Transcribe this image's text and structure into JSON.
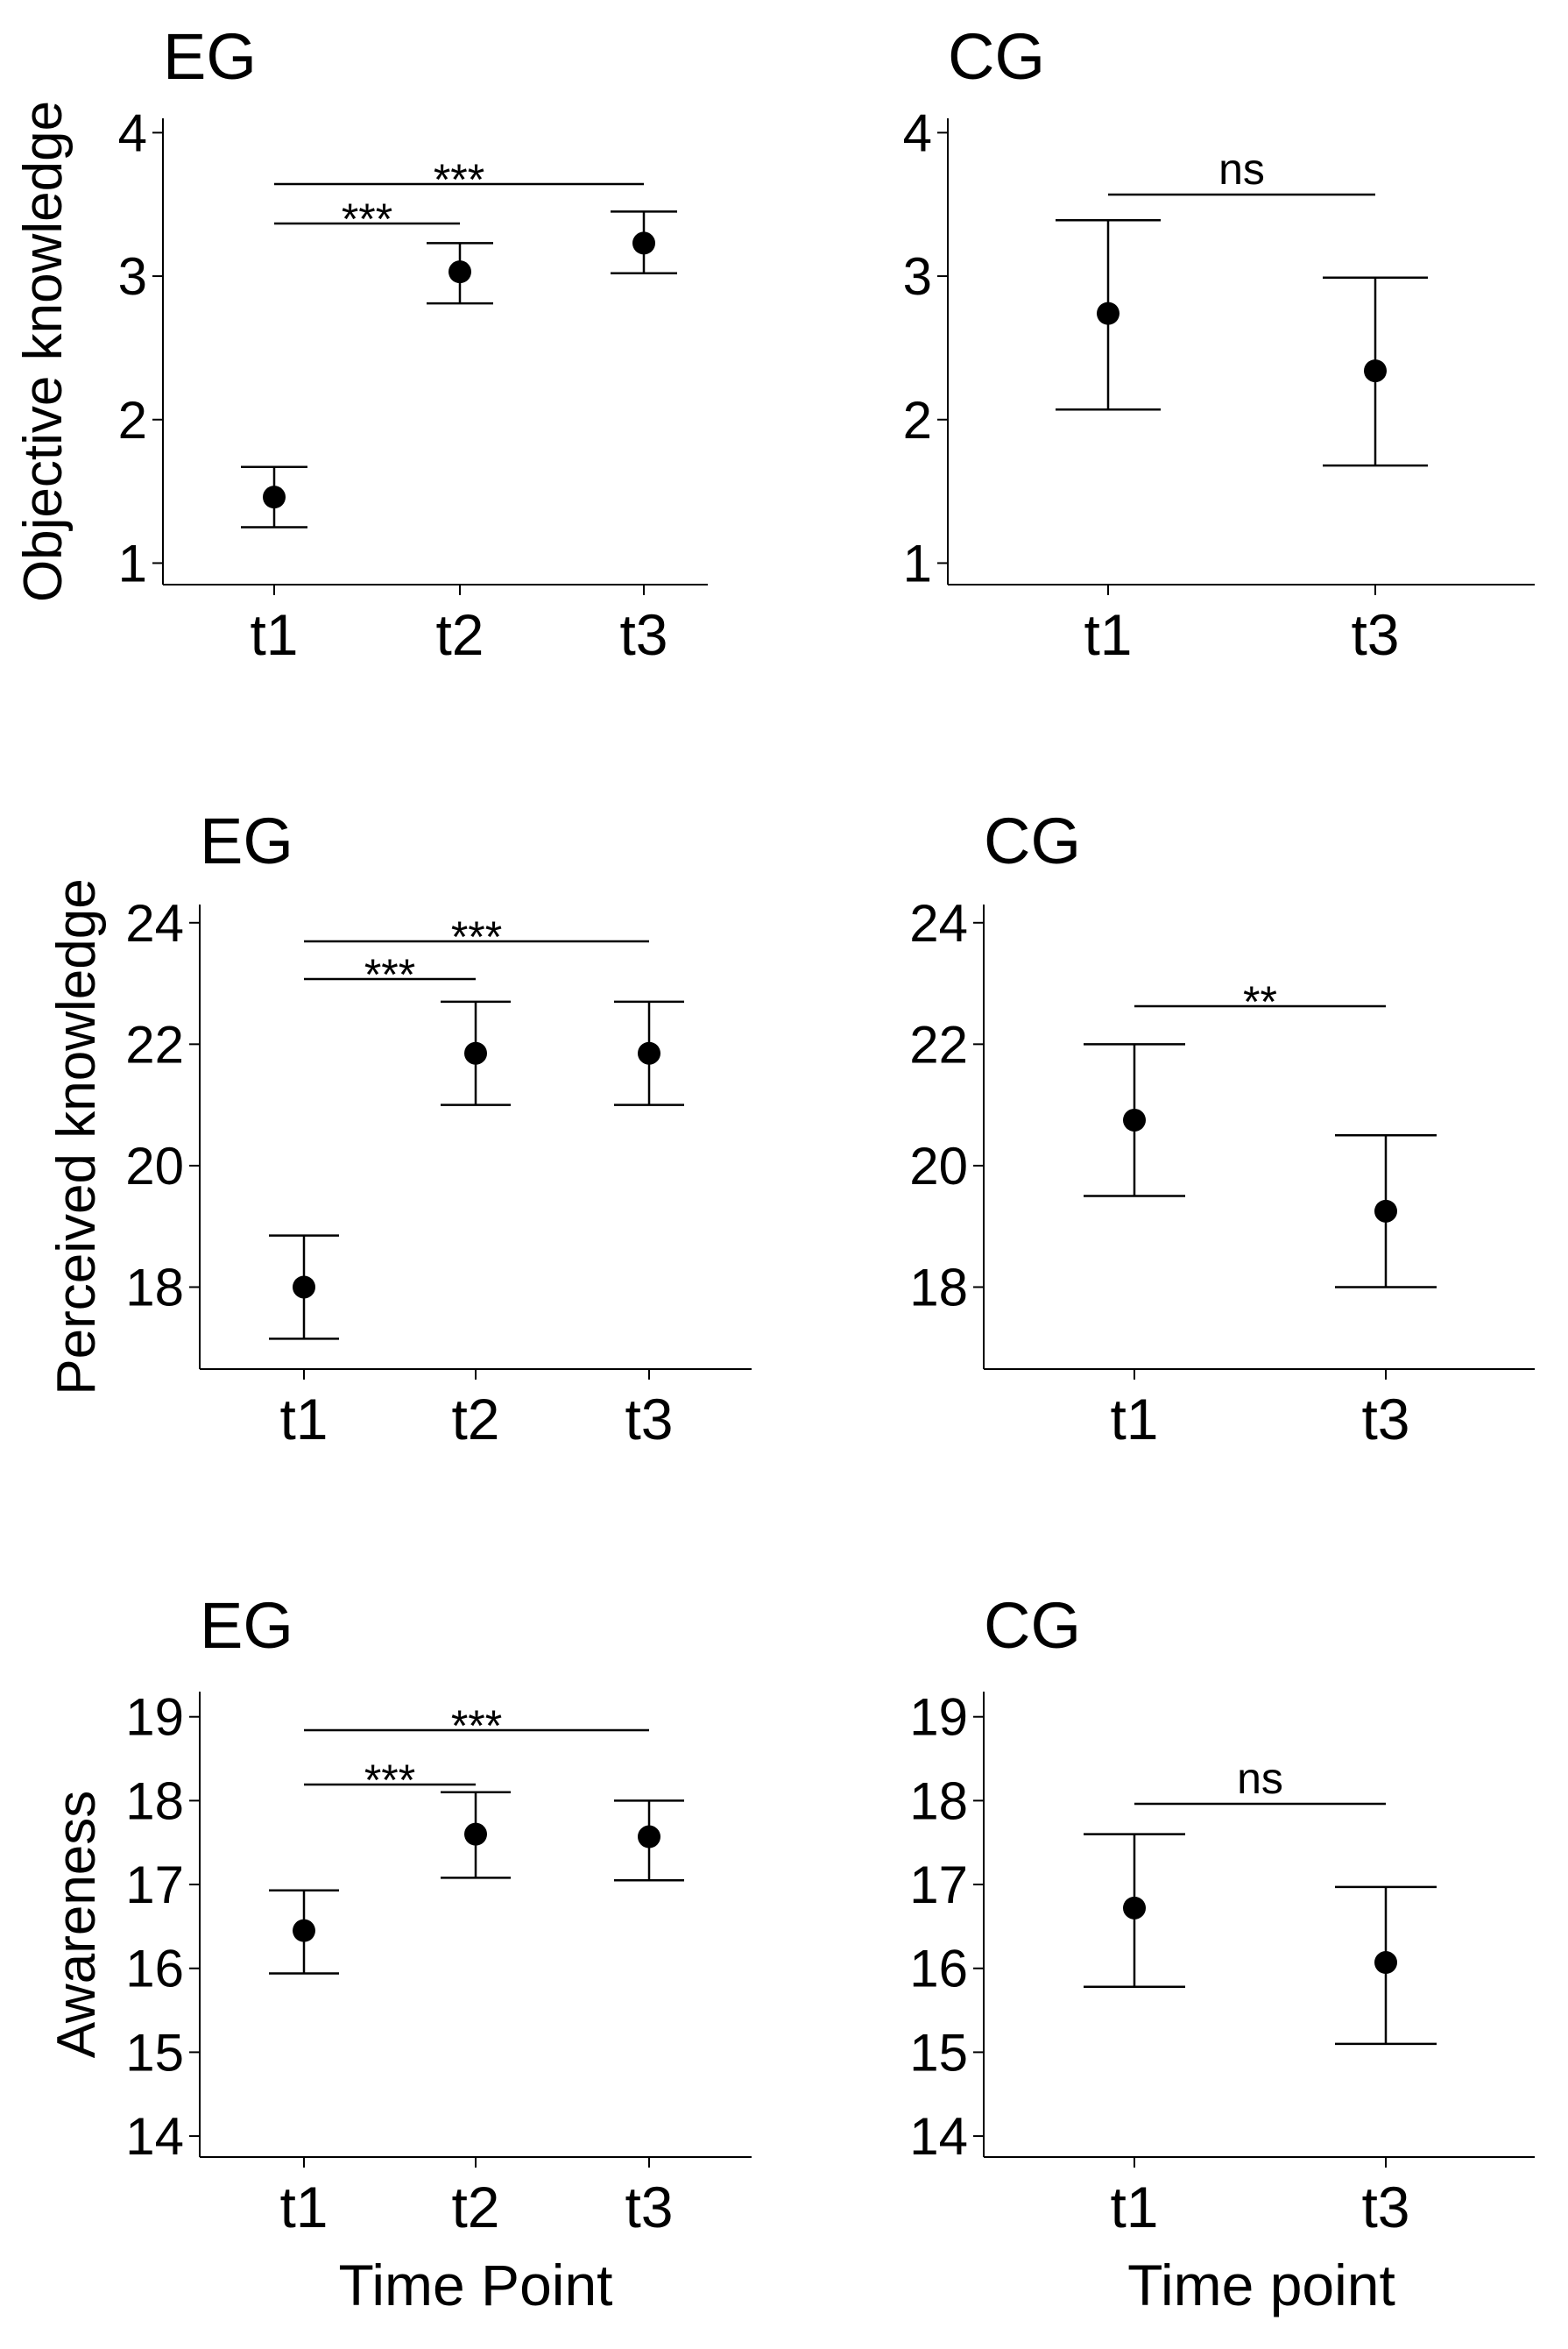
{
  "chart_data": [
    {
      "type": "scatter",
      "group": "EG",
      "title": "EG",
      "ylabel": "Objective knowledge",
      "xlabel": "",
      "categories": [
        "t1",
        "t2",
        "t3"
      ],
      "values": [
        1.46,
        3.03,
        3.23
      ],
      "ci_lower": [
        1.25,
        2.81,
        3.02
      ],
      "ci_upper": [
        1.67,
        3.23,
        3.45
      ],
      "ylim": [
        0.85,
        4.1
      ],
      "yticks": [
        "1",
        "2",
        "3",
        "4"
      ],
      "comparisons": [
        {
          "from": "t1",
          "to": "t2",
          "label": "***"
        },
        {
          "from": "t1",
          "to": "t3",
          "label": "***"
        }
      ]
    },
    {
      "type": "scatter",
      "group": "CG",
      "title": "CG",
      "ylabel": "",
      "xlabel": "",
      "categories": [
        "t1",
        "t3"
      ],
      "values": [
        2.74,
        2.34
      ],
      "ci_lower": [
        2.07,
        1.68
      ],
      "ci_upper": [
        3.39,
        2.99
      ],
      "ylim": [
        0.85,
        4.1
      ],
      "yticks": [
        "1",
        "2",
        "3",
        "4"
      ],
      "comparisons": [
        {
          "from": "t1",
          "to": "t3",
          "label": "ns"
        }
      ]
    },
    {
      "type": "scatter",
      "group": "EG",
      "title": "EG",
      "ylabel": "Perceived knowledge",
      "xlabel": "",
      "categories": [
        "t1",
        "t2",
        "t3"
      ],
      "values": [
        18.0,
        21.85,
        21.85
      ],
      "ci_lower": [
        17.15,
        21.0,
        21.0
      ],
      "ci_upper": [
        18.85,
        22.7,
        22.7
      ],
      "ylim": [
        16.65,
        24.3
      ],
      "yticks": [
        "18",
        "20",
        "22",
        "24"
      ],
      "comparisons": [
        {
          "from": "t1",
          "to": "t2",
          "label": "***"
        },
        {
          "from": "t1",
          "to": "t3",
          "label": "***"
        }
      ]
    },
    {
      "type": "scatter",
      "group": "CG",
      "title": "CG",
      "ylabel": "",
      "xlabel": "",
      "categories": [
        "t1",
        "t3"
      ],
      "values": [
        20.75,
        19.25
      ],
      "ci_lower": [
        19.5,
        18.0
      ],
      "ci_upper": [
        22.0,
        20.5
      ],
      "ylim": [
        16.65,
        24.3
      ],
      "yticks": [
        "18",
        "20",
        "22",
        "24"
      ],
      "comparisons": [
        {
          "from": "t1",
          "to": "t3",
          "label": "**"
        }
      ]
    },
    {
      "type": "scatter",
      "group": "EG",
      "title": "EG",
      "ylabel": "Awareness",
      "xlabel": "Time Point",
      "categories": [
        "t1",
        "t2",
        "t3"
      ],
      "values": [
        16.45,
        17.6,
        17.57
      ],
      "ci_lower": [
        15.94,
        17.08,
        17.05
      ],
      "ci_upper": [
        16.93,
        18.1,
        18.0
      ],
      "ylim": [
        13.75,
        19.3
      ],
      "yticks": [
        "14",
        "15",
        "16",
        "17",
        "18",
        "19"
      ],
      "comparisons": [
        {
          "from": "t1",
          "to": "t2",
          "label": "***"
        },
        {
          "from": "t1",
          "to": "t3",
          "label": "***"
        }
      ]
    },
    {
      "type": "scatter",
      "group": "CG",
      "title": "CG",
      "ylabel": "",
      "xlabel": "Time point",
      "categories": [
        "t1",
        "t3"
      ],
      "values": [
        16.72,
        16.07
      ],
      "ci_lower": [
        15.78,
        15.1
      ],
      "ci_upper": [
        17.6,
        16.97
      ],
      "ylim": [
        13.75,
        19.3
      ],
      "yticks": [
        "14",
        "15",
        "16",
        "17",
        "18",
        "19"
      ],
      "comparisons": [
        {
          "from": "t1",
          "to": "t3",
          "label": "ns"
        }
      ]
    }
  ]
}
